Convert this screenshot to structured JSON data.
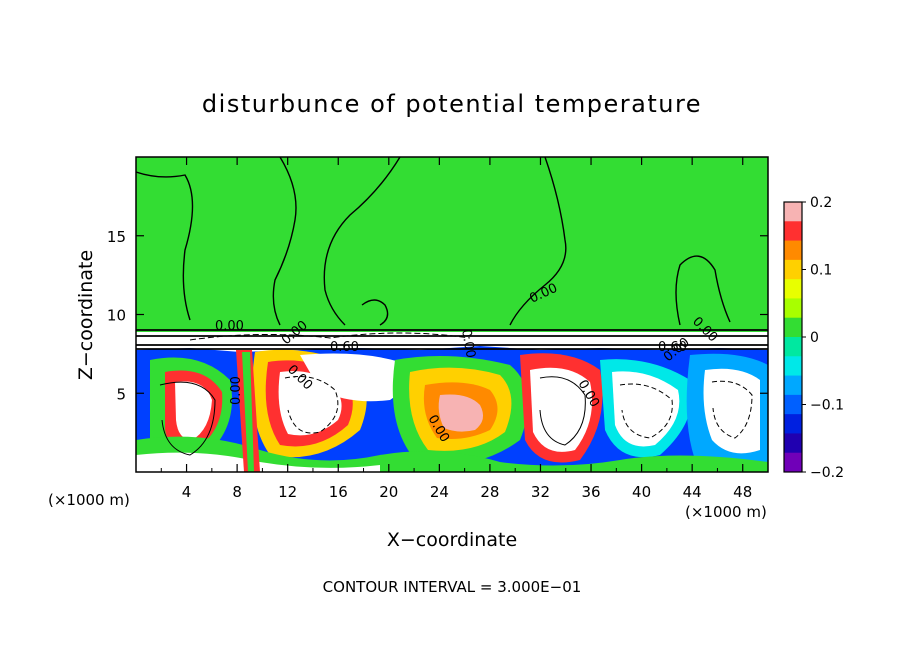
{
  "chart_data": {
    "type": "heatmap",
    "title": "disturbunce of potential temperature",
    "xlabel": "X−coordinate",
    "ylabel": "Z−coordinate",
    "x_unit_label": "(×1000 m)",
    "x_unit_label_right": "(×1000 m)",
    "footer": "CONTOUR INTERVAL = 3.000E−01",
    "xlim": [
      0,
      50
    ],
    "ylim": [
      0,
      20
    ],
    "x_ticks": [
      "4",
      "8",
      "12",
      "16",
      "20",
      "24",
      "28",
      "32",
      "36",
      "40",
      "44",
      "48"
    ],
    "y_ticks": [
      "5",
      "10",
      "15"
    ],
    "colorbar": {
      "range": [
        -0.2,
        0.2
      ],
      "tick_labels": [
        "0.2",
        "0.1",
        "0",
        "−0.1",
        "−0.2"
      ],
      "colors": [
        "#f7b3b3",
        "#ff3030",
        "#ff8a00",
        "#ffd000",
        "#e8ff00",
        "#a8ff00",
        "#33dd33",
        "#00e8a0",
        "#00e8e8",
        "#00a8ff",
        "#0060ff",
        "#0020e0",
        "#2000b0",
        "#7000b8"
      ]
    },
    "contour_labels": [
      "0.00",
      "0.00",
      "0.00",
      "0.60",
      "0.60",
      "0.00",
      "0.00",
      "0.00",
      "0.00",
      "0.00",
      "0.00",
      "0.00"
    ]
  }
}
